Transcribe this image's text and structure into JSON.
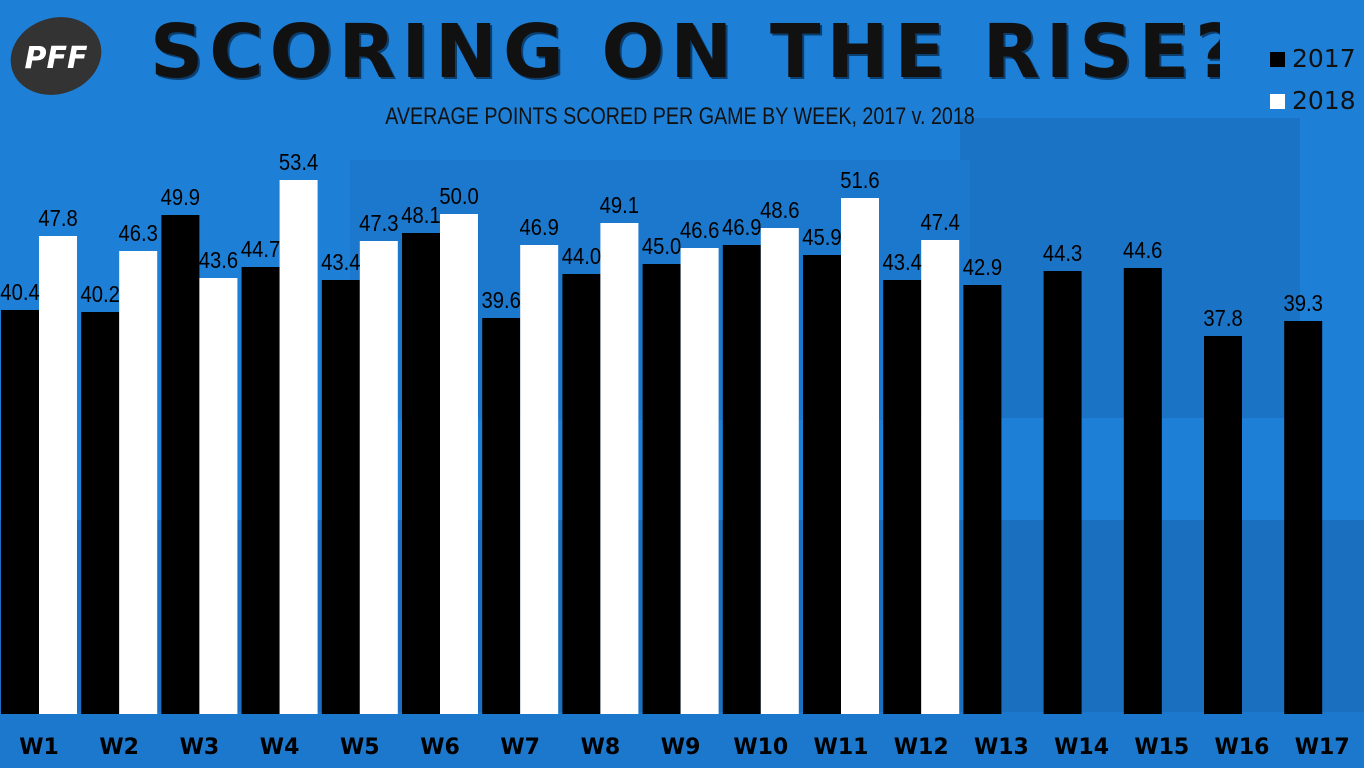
{
  "header": {
    "logo_text": "PFF",
    "title": "SCORING ON THE RISE?",
    "subtitle": "AVERAGE POINTS SCORED PER GAME BY WEEK, 2017 v. 2018"
  },
  "legend": [
    {
      "label": "2017",
      "color": "#000000"
    },
    {
      "label": "2018",
      "color": "#ffffff"
    }
  ],
  "colors": {
    "background": "#1e7fd6",
    "bar_2017": "#000000",
    "bar_2018": "#ffffff",
    "label_text": "#000000"
  },
  "chart_data": {
    "type": "bar",
    "title": "SCORING ON THE RISE?",
    "subtitle": "AVERAGE POINTS SCORED PER GAME BY WEEK, 2017 v. 2018",
    "categories": [
      "W1",
      "W2",
      "W3",
      "W4",
      "W5",
      "W6",
      "W7",
      "W8",
      "W9",
      "W10",
      "W11",
      "W12",
      "W13",
      "W14",
      "W15",
      "W16",
      "W17"
    ],
    "series": [
      {
        "name": "2017",
        "values": [
          40.4,
          40.2,
          49.9,
          44.7,
          43.4,
          48.1,
          39.6,
          44.0,
          45.0,
          46.9,
          45.9,
          43.4,
          42.9,
          44.3,
          44.6,
          37.8,
          39.3
        ]
      },
      {
        "name": "2018",
        "values": [
          47.8,
          46.3,
          43.6,
          53.4,
          47.3,
          50.0,
          46.9,
          49.1,
          46.6,
          48.6,
          51.6,
          47.4,
          null,
          null,
          null,
          null,
          null
        ]
      }
    ],
    "value_labels": {
      "2017": [
        "40.4",
        "40.2",
        "49.9",
        "44.7",
        "43.4",
        "48.1",
        "39.6",
        "44.0",
        "45.0",
        "46.9",
        "45.9",
        "43.4",
        "42.9",
        "44.3",
        "44.6",
        "37.8",
        "39.3"
      ],
      "2018": [
        "47.8",
        "46.3",
        "43.6",
        "53.4",
        "47.3",
        "50.0",
        "46.9",
        "49.1",
        "46.6",
        "48.6",
        "51.6",
        "47.4",
        "",
        "",
        "",
        "",
        ""
      ]
    },
    "xlabel": "",
    "ylabel": "",
    "ylim": [
      0,
      55.4
    ],
    "grid": false,
    "legend_position": "top-right",
    "data_labels": true
  }
}
